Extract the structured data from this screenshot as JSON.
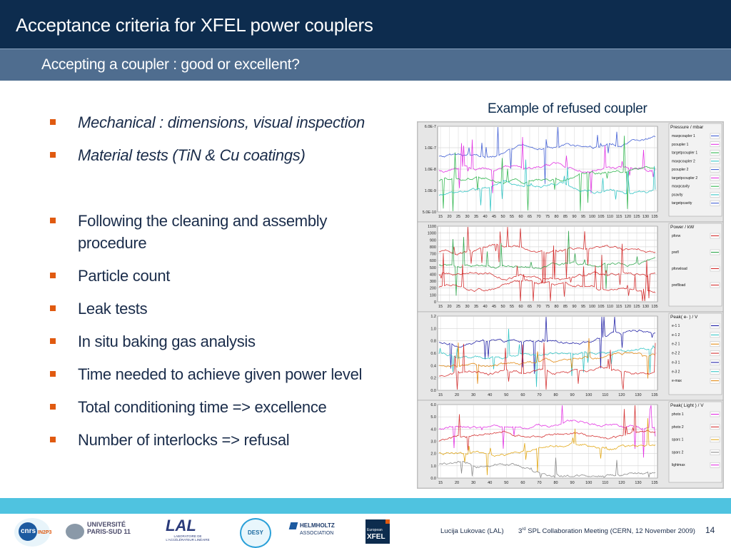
{
  "header": {
    "title": "Acceptance criteria for XFEL power couplers"
  },
  "subheader": {
    "title": "Accepting a coupler : good or excellent?"
  },
  "bullets": [
    {
      "text": "Mechanical : dimensions, visual inspection",
      "italic": true
    },
    {
      "text": "Material tests (TiN & Cu coatings)",
      "italic": true
    },
    {
      "text": "Following the cleaning and assembly",
      "italic": false
    },
    {
      "text": "procedure",
      "italic": false
    },
    {
      "text": "Particle count",
      "italic": false
    },
    {
      "text": "Leak tests",
      "italic": false
    },
    {
      "text": "In situ baking gas analysis",
      "italic": false
    },
    {
      "text": "Time needed to achieve given power level",
      "italic": false
    },
    {
      "text": "Total conditioning time => excellence",
      "italic": false
    },
    {
      "text": "Number of interlocks => refusal",
      "italic": false
    }
  ],
  "figure": {
    "caption": "Example of refused coupler",
    "panels": [
      {
        "legend_title": "Pressure / mbar",
        "y_ticks": [
          "6.0E-7",
          "1.0E-7",
          "1.0E-8",
          "1.0E-9",
          "5.0E-10"
        ],
        "x_ticks": [
          "15",
          "20",
          "25",
          "30",
          "35",
          "40",
          "45",
          "50",
          "55",
          "60",
          "65",
          "70",
          "75",
          "80",
          "85",
          "90",
          "95",
          "100",
          "105",
          "110",
          "115",
          "120",
          "125",
          "130",
          "135"
        ],
        "legend": [
          "maxpcoupler 1",
          "pcoupler 1",
          "targetpcoupler 1",
          "maxpcoupler 2",
          "pcoupler 2",
          "targetpcoupler 2",
          "maxpcavity",
          "pcavity",
          "targetpcavity"
        ]
      },
      {
        "legend_title": "Power / kW",
        "y_ticks": [
          "1100",
          "1000",
          "900",
          "800",
          "700",
          "600",
          "500",
          "400",
          "300",
          "200",
          "100",
          "0"
        ],
        "x_ticks": [
          "15",
          "20",
          "25",
          "30",
          "35",
          "40",
          "45",
          "50",
          "55",
          "60",
          "65",
          "70",
          "75",
          "80",
          "85",
          "90",
          "95",
          "100",
          "105",
          "110",
          "115",
          "120",
          "125",
          "130",
          "135"
        ],
        "legend": [
          "pforw",
          "prefl",
          "pforwload",
          "preflload"
        ]
      },
      {
        "legend_title": "Peak( e- ) / V",
        "y_ticks": [
          "1.2",
          "1.0",
          "0.8",
          "0.6",
          "0.4",
          "0.2",
          "0.0"
        ],
        "x_ticks": [
          "15",
          "20",
          "30",
          "40",
          "50",
          "60",
          "70",
          "80",
          "90",
          "100",
          "110",
          "120",
          "130",
          "135"
        ],
        "legend": [
          "e-1 1",
          "e-1 2",
          "e-2 1",
          "e-2 2",
          "e-3 1",
          "e-3 2",
          "e-max"
        ]
      },
      {
        "legend_title": "Peak( Light ) / V",
        "y_ticks": [
          "6.0",
          "5.0",
          "4.0",
          "3.0",
          "2.0",
          "1.0",
          "0.0"
        ],
        "x_ticks": [
          "15",
          "20",
          "30",
          "40",
          "50",
          "60",
          "70",
          "80",
          "90",
          "100",
          "110",
          "120",
          "130",
          "135"
        ],
        "legend": [
          "photo 1",
          "photo 2",
          "sparc 1",
          "sparc 2",
          "lightmax"
        ]
      }
    ]
  },
  "footer": {
    "logos": [
      "cnrs",
      "IN2P3",
      "UNIVERSITÉ PARIS-SUD 11",
      "LAL",
      "LABORATOIRE DE L'ACCÉLÉRATEUR LINÉAIRE",
      "DESY",
      "HELMHOLTZ",
      "ASSOCIATION",
      "European",
      "XFEL"
    ],
    "author": "Lucija Lukovac (LAL)",
    "meeting_sup": "rd",
    "meeting_num": "3",
    "meeting": "SPL Collaboration Meeting (CERN, 12 November 2009)",
    "page": "14"
  }
}
